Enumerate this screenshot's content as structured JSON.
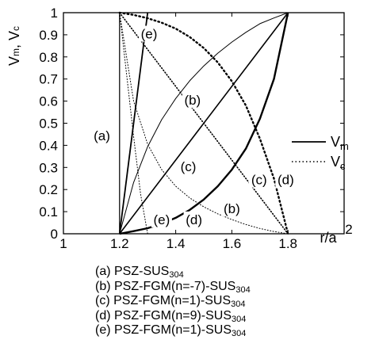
{
  "chart_data": {
    "type": "line",
    "xlabel": "r/a",
    "ylabel": "V_m, V_c",
    "xlim": [
      1,
      2
    ],
    "ylim": [
      0,
      1
    ],
    "x_ticks": [
      "1",
      "1.2",
      "1.4",
      "1.6",
      "1.8",
      "2"
    ],
    "y_ticks": [
      "0",
      "0.1",
      "0.2",
      "0.3",
      "0.4",
      "0.5",
      "0.6",
      "0.7",
      "0.8",
      "0.9",
      "1"
    ],
    "legend": [
      {
        "label": "V",
        "sub": "m",
        "style": "solid"
      },
      {
        "label": "V",
        "sub": "c",
        "style": "dotted"
      }
    ],
    "series": [
      {
        "label": "(a)",
        "quantity": "V_m",
        "style": "solid",
        "width": 1.0,
        "x": [
          1.2,
          1.2,
          1.2
        ],
        "y": [
          0,
          0.5,
          1
        ]
      },
      {
        "label": "(a)",
        "quantity": "V_c",
        "style": "solid",
        "width": 1.0,
        "x": [
          1.2,
          1.2,
          1.2
        ],
        "y": [
          1,
          0.5,
          0
        ]
      },
      {
        "label": "(b)",
        "quantity": "V_m",
        "style": "solid",
        "width": 1.0,
        "x": [
          1.2,
          1.25,
          1.3,
          1.35,
          1.4,
          1.45,
          1.5,
          1.55,
          1.6,
          1.65,
          1.7,
          1.75,
          1.8
        ],
        "y": [
          0,
          0.232,
          0.394,
          0.516,
          0.612,
          0.692,
          0.759,
          0.817,
          0.867,
          0.911,
          0.95,
          0.976,
          1
        ]
      },
      {
        "label": "(b)",
        "quantity": "V_c",
        "style": "dotted",
        "width": 1.0,
        "x": [
          1.2,
          1.25,
          1.3,
          1.35,
          1.4,
          1.45,
          1.5,
          1.55,
          1.6,
          1.65,
          1.7,
          1.75,
          1.8
        ],
        "y": [
          1,
          0.6,
          0.405,
          0.29,
          0.215,
          0.162,
          0.122,
          0.09,
          0.064,
          0.042,
          0.024,
          0.01,
          0
        ]
      },
      {
        "label": "(c)",
        "quantity": "V_m",
        "style": "solid",
        "width": 1.6,
        "x": [
          1.2,
          1.8
        ],
        "y": [
          0,
          1
        ]
      },
      {
        "label": "(c)",
        "quantity": "V_c",
        "style": "dotted",
        "width": 1.6,
        "x": [
          1.2,
          1.8
        ],
        "y": [
          1,
          0
        ]
      },
      {
        "label": "(d)",
        "quantity": "V_m",
        "style": "solid",
        "width": 2.4,
        "x": [
          1.2,
          1.25,
          1.3,
          1.35,
          1.4,
          1.45,
          1.5,
          1.55,
          1.6,
          1.65,
          1.7,
          1.75,
          1.8
        ],
        "y": [
          0,
          0.012,
          0.025,
          0.045,
          0.072,
          0.108,
          0.155,
          0.215,
          0.29,
          0.385,
          0.52,
          0.7,
          1
        ]
      },
      {
        "label": "(d)",
        "quantity": "V_c",
        "style": "dotted",
        "width": 2.4,
        "x": [
          1.2,
          1.25,
          1.3,
          1.35,
          1.4,
          1.45,
          1.5,
          1.55,
          1.6,
          1.65,
          1.7,
          1.75,
          1.8
        ],
        "y": [
          1,
          0.99,
          0.975,
          0.955,
          0.928,
          0.89,
          0.84,
          0.775,
          0.69,
          0.58,
          0.43,
          0.25,
          0
        ]
      },
      {
        "label": "(e)",
        "quantity": "V_m",
        "style": "solid",
        "width": 1.8,
        "x": [
          1.2,
          1.3
        ],
        "y": [
          0,
          1
        ]
      },
      {
        "label": "(e)",
        "quantity": "V_c",
        "style": "dotted",
        "width": 1.0,
        "x": [
          1.2,
          1.225,
          1.25,
          1.275,
          1.3
        ],
        "y": [
          1,
          0.72,
          0.44,
          0.18,
          0
        ]
      }
    ],
    "annotations": [
      {
        "text": "(a)",
        "x": 1.137,
        "y": 0.445
      },
      {
        "text": "(e)",
        "x": 1.305,
        "y": 0.905
      },
      {
        "text": "(b)",
        "x": 1.46,
        "y": 0.605
      },
      {
        "text": "(c)",
        "x": 1.445,
        "y": 0.305
      },
      {
        "text": "(c)",
        "x": 1.697,
        "y": 0.245
      },
      {
        "text": "(d)",
        "x": 1.792,
        "y": 0.245
      },
      {
        "text": "(b)",
        "x": 1.6,
        "y": 0.115
      },
      {
        "text": "(e)",
        "x": 1.35,
        "y": 0.065
      },
      {
        "text": "(d)",
        "x": 1.465,
        "y": 0.065
      }
    ]
  },
  "captions": [
    {
      "prefix": "(a) PSZ-SUS",
      "sub": "304"
    },
    {
      "prefix": "(b) PSZ-FGM(n=-7)-SUS",
      "sub": "304"
    },
    {
      "prefix": "(c) PSZ-FGM(n=1)-SUS",
      "sub": "304"
    },
    {
      "prefix": "(d) PSZ-FGM(n=9)-SUS",
      "sub": "304"
    },
    {
      "prefix": "(e) PSZ-FGM(n=1)-SUS",
      "sub": "304"
    }
  ]
}
